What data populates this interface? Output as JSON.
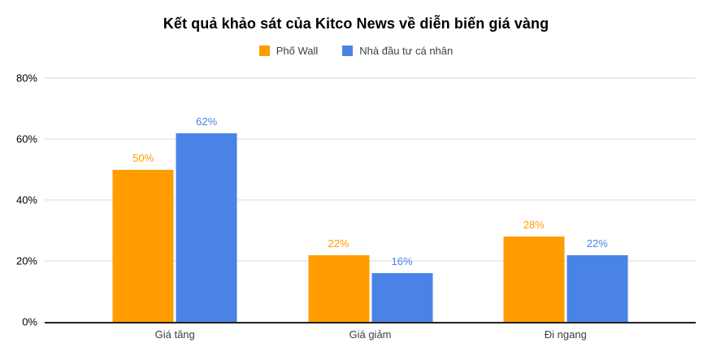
{
  "chart_data": {
    "type": "bar",
    "title": "Kết quả khảo sát của Kitco News về diễn biến giá vàng",
    "categories": [
      "Giá tăng",
      "Giá giảm",
      "Đi ngang"
    ],
    "series": [
      {
        "name": "Phố Wall",
        "color": "#FF9C00",
        "values": [
          50,
          22,
          28
        ],
        "labels": [
          "50%",
          "22%",
          "28%"
        ]
      },
      {
        "name": "Nhà đầu tư cá nhân",
        "color": "#4A83E6",
        "values": [
          62,
          16,
          22
        ],
        "labels": [
          "62%",
          "16%",
          "22%"
        ]
      }
    ],
    "xlabel": "",
    "ylabel": "",
    "ylim": [
      0,
      80
    ],
    "yticks": [
      {
        "value": 0,
        "label": "0%"
      },
      {
        "value": 20,
        "label": "20%"
      },
      {
        "value": 40,
        "label": "40%"
      },
      {
        "value": 60,
        "label": "60%"
      },
      {
        "value": 80,
        "label": "80%"
      }
    ],
    "legend_position": "top",
    "grid": true,
    "colors": {
      "background": "#ffffff",
      "gridline": "#d9d9d9",
      "axis_line": "#212121",
      "title_text": "#000000",
      "tick_text": "#000000",
      "category_text": "#3c4043"
    }
  }
}
